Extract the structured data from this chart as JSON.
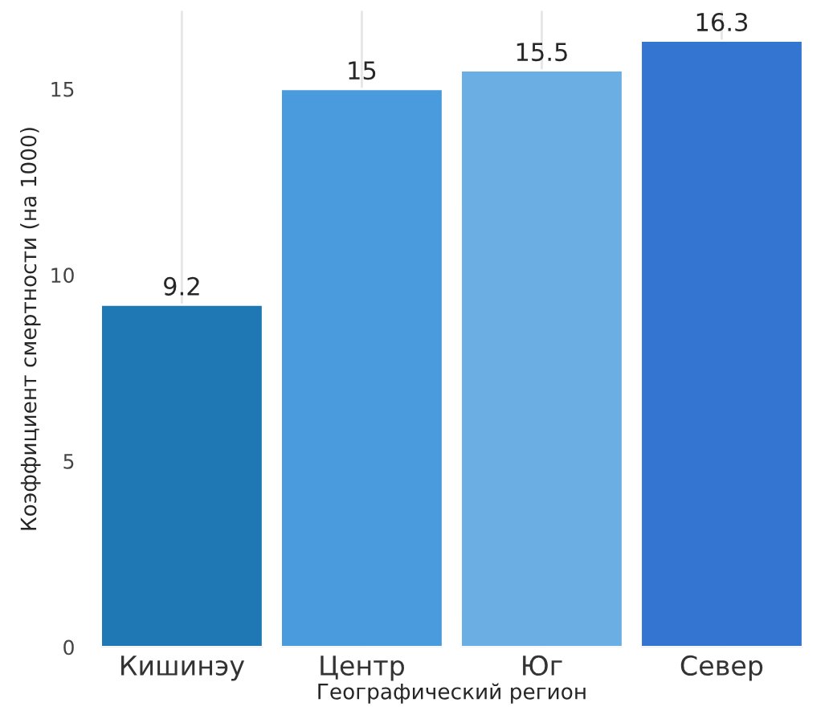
{
  "chart_data": {
    "type": "bar",
    "xlabel": "Географический регион",
    "ylabel": "Коэффициент смертности (на 1000)",
    "categories": [
      "Кишинэу",
      "Центр",
      "Юг",
      "Север"
    ],
    "values": [
      9.2,
      15,
      15.5,
      16.3
    ],
    "colors": [
      "#1f77b4",
      "#4a9ade",
      "#6aaee3",
      "#3375d1"
    ],
    "ylim": [
      0,
      17.1
    ],
    "yticks": [
      0,
      5,
      10,
      15
    ],
    "grid": "x",
    "data_labels": true
  }
}
